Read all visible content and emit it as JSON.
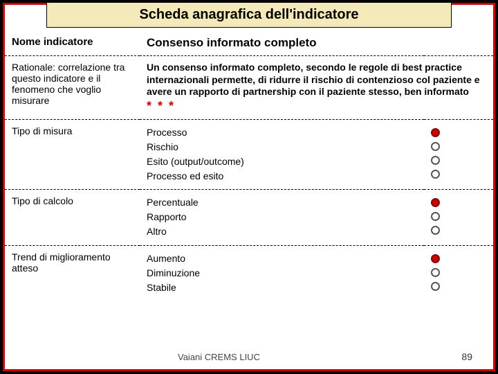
{
  "colors": {
    "frame_border": "#c00",
    "title_bg": "#f4e9b8",
    "marker_filled": "#c00",
    "marker_empty_border": "#555",
    "stars_color": "#c00"
  },
  "title": "Scheda anagrafica dell'indicatore",
  "rows": [
    {
      "label": "Nome indicatore",
      "value": "Consenso informato completo",
      "header": true
    },
    {
      "label": "Rationale: correlazione tra questo indicatore e il fenomeno che voglio misurare",
      "value": "Un consenso informato completo, secondo le regole di best practice internazionali permette, di ridurre il rischio di contenzioso col paziente e avere un rapporto di partnership con il paziente stesso, ben informato",
      "stars": "* * *",
      "rationale": true
    }
  ],
  "option_rows": [
    {
      "label": "Tipo di misura",
      "options": [
        "Processo",
        "Rischio",
        "Esito (output/outcome)",
        "Processo ed esito"
      ],
      "selected_index": 0
    },
    {
      "label": "Tipo di calcolo",
      "options": [
        "Percentuale",
        "Rapporto",
        "Altro"
      ],
      "selected_index": 0
    },
    {
      "label": "Trend di miglioramento atteso",
      "options": [
        "Aumento",
        "Diminuzione",
        "Stabile"
      ],
      "selected_index": 0
    }
  ],
  "footer_credit": "Vaiani CREMS LIUC",
  "page_number": "89"
}
